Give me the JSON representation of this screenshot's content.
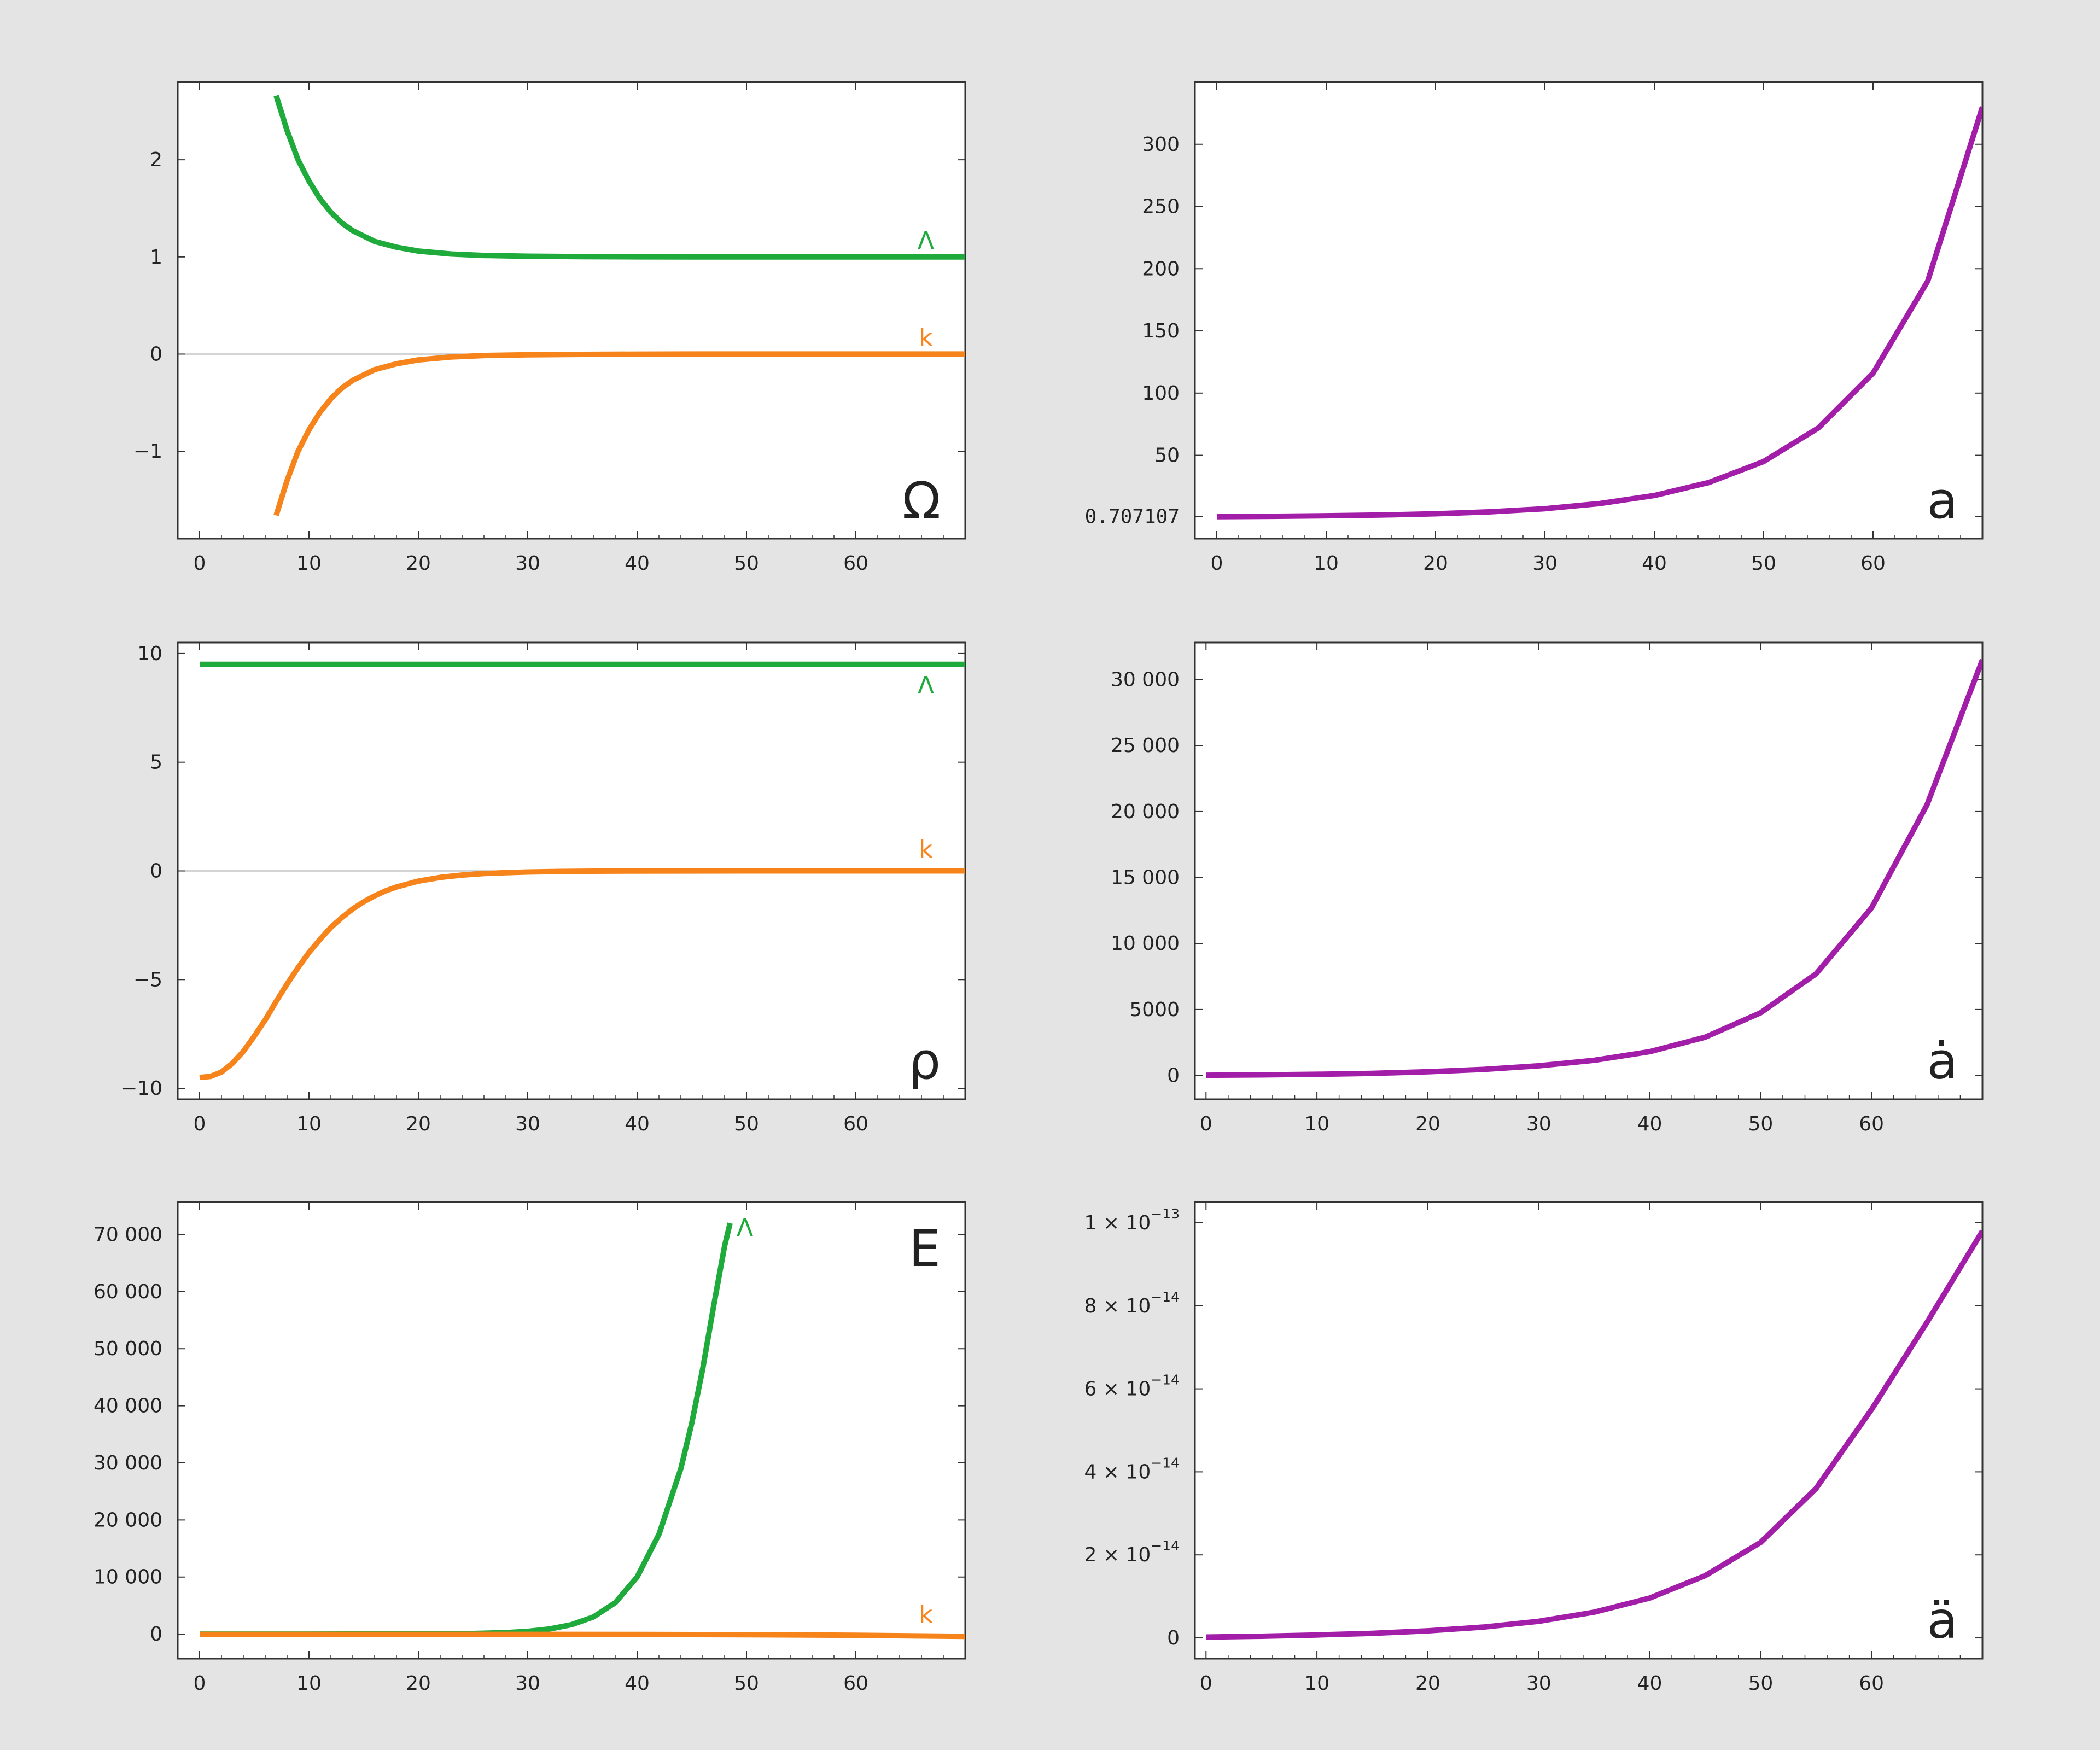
{
  "chart_data": [
    {
      "id": "omega",
      "type": "line",
      "panel_label": "Ω",
      "xlim": [
        -2,
        70
      ],
      "ylim": [
        -1.9,
        2.8
      ],
      "x_ticks": [
        0,
        10,
        20,
        30,
        40,
        50,
        60
      ],
      "y_ticks": [
        {
          "v": 2,
          "t": "2"
        },
        {
          "v": 1,
          "t": "1"
        },
        {
          "v": 0,
          "t": "0"
        },
        {
          "v": -1,
          "t": "−1"
        }
      ],
      "zero_line": true,
      "series": [
        {
          "name": "Λ",
          "color": "#1faa3c",
          "x": [
            7,
            8,
            9,
            10,
            11,
            12,
            13,
            14,
            16,
            18,
            20,
            23,
            26,
            30,
            35,
            40,
            45,
            50,
            55,
            60,
            65,
            70
          ],
          "y": [
            2.66,
            2.3,
            2.0,
            1.78,
            1.6,
            1.46,
            1.35,
            1.27,
            1.16,
            1.1,
            1.06,
            1.03,
            1.015,
            1.007,
            1.003,
            1.001,
            1.0,
            1.0,
            1.0,
            1.0,
            1.0,
            1.0
          ]
        },
        {
          "name": "k",
          "color": "#f7841b",
          "x": [
            7,
            8,
            9,
            10,
            11,
            12,
            13,
            14,
            16,
            18,
            20,
            23,
            26,
            30,
            35,
            40,
            45,
            50,
            55,
            60,
            65,
            70
          ],
          "y": [
            -1.66,
            -1.3,
            -1.0,
            -0.78,
            -0.6,
            -0.46,
            -0.35,
            -0.27,
            -0.16,
            -0.1,
            -0.06,
            -0.03,
            -0.015,
            -0.007,
            -0.003,
            -0.001,
            0.0,
            0.0,
            0.0,
            0.0,
            0.0,
            0.0
          ]
        }
      ]
    },
    {
      "id": "a",
      "type": "line",
      "panel_label": "a",
      "xlim": [
        -2,
        70
      ],
      "ylim": [
        -17,
        350
      ],
      "x_ticks": [
        0,
        10,
        20,
        30,
        40,
        50,
        60
      ],
      "y_ticks": [
        {
          "v": 0.707107,
          "t": "0.707107",
          "mono": true
        },
        {
          "v": 50,
          "t": "50"
        },
        {
          "v": 100,
          "t": "100"
        },
        {
          "v": 150,
          "t": "150"
        },
        {
          "v": 200,
          "t": "200"
        },
        {
          "v": 250,
          "t": "250"
        },
        {
          "v": 300,
          "t": "300"
        }
      ],
      "series": [
        {
          "name": "",
          "color": "#a31ea8",
          "x": [
            0,
            5,
            10,
            15,
            20,
            25,
            30,
            35,
            40,
            45,
            50,
            55,
            60,
            65,
            70
          ],
          "y": [
            0.707,
            0.98,
            1.4,
            2.0,
            3.0,
            4.6,
            7.1,
            11.2,
            17.7,
            28.2,
            45.0,
            72.0,
            116,
            190,
            330
          ]
        }
      ]
    },
    {
      "id": "rho",
      "type": "line",
      "panel_label": "ρ",
      "xlim": [
        -2,
        70
      ],
      "ylim": [
        -10.5,
        10.5
      ],
      "x_ticks": [
        0,
        10,
        20,
        30,
        40,
        50,
        60
      ],
      "y_ticks": [
        {
          "v": 10,
          "t": "10"
        },
        {
          "v": 5,
          "t": "5"
        },
        {
          "v": 0,
          "t": "0"
        },
        {
          "v": -5,
          "t": "−5"
        },
        {
          "v": -10,
          "t": "−10"
        }
      ],
      "zero_line": true,
      "series": [
        {
          "name": "Λ",
          "color": "#1faa3c",
          "x": [
            0,
            70
          ],
          "y": [
            9.5,
            9.5
          ]
        },
        {
          "name": "k",
          "color": "#f7841b",
          "x": [
            0,
            1,
            2,
            3,
            4,
            5,
            6,
            7,
            8,
            9,
            10,
            11,
            12,
            13,
            14,
            15,
            16,
            17,
            18,
            20,
            22,
            24,
            26,
            28,
            30,
            33,
            36,
            40,
            45,
            50,
            55,
            60,
            65,
            70
          ],
          "y": [
            -9.5,
            -9.45,
            -9.25,
            -8.85,
            -8.3,
            -7.6,
            -6.85,
            -6.0,
            -5.2,
            -4.45,
            -3.75,
            -3.15,
            -2.6,
            -2.15,
            -1.75,
            -1.42,
            -1.15,
            -0.92,
            -0.74,
            -0.47,
            -0.3,
            -0.19,
            -0.12,
            -0.08,
            -0.05,
            -0.025,
            -0.012,
            -0.005,
            -0.002,
            -0.001,
            0.0,
            0.0,
            0.0,
            0.0
          ]
        }
      ]
    },
    {
      "id": "adot",
      "type": "line",
      "panel_label": "ȧ",
      "xlim": [
        -1,
        70
      ],
      "ylim": [
        -1800,
        32800
      ],
      "x_ticks": [
        0,
        10,
        20,
        30,
        40,
        50,
        60
      ],
      "y_ticks": [
        {
          "v": 0,
          "t": "0"
        },
        {
          "v": 5000,
          "t": "5000"
        },
        {
          "v": 10000,
          "t": "10 000"
        },
        {
          "v": 15000,
          "t": "15 000"
        },
        {
          "v": 20000,
          "t": "20 000"
        },
        {
          "v": 25000,
          "t": "25 000"
        },
        {
          "v": 30000,
          "t": "30 000"
        }
      ],
      "series": [
        {
          "name": "",
          "color": "#a31ea8",
          "x": [
            0,
            5,
            10,
            15,
            20,
            25,
            30,
            35,
            40,
            45,
            50,
            55,
            60,
            65,
            70
          ],
          "y": [
            20,
            45,
            90,
            160,
            280,
            460,
            730,
            1150,
            1800,
            2900,
            4750,
            7700,
            12700,
            20500,
            31500
          ]
        }
      ]
    },
    {
      "id": "E",
      "type": "line",
      "panel_label": "E",
      "xlim": [
        -2,
        70
      ],
      "ylim": [
        -4300,
        75700
      ],
      "x_ticks": [
        0,
        10,
        20,
        30,
        40,
        50,
        60
      ],
      "y_ticks": [
        {
          "v": 0,
          "t": "0"
        },
        {
          "v": 10000,
          "t": "10 000"
        },
        {
          "v": 20000,
          "t": "20 000"
        },
        {
          "v": 30000,
          "t": "30 000"
        },
        {
          "v": 40000,
          "t": "40 000"
        },
        {
          "v": 50000,
          "t": "50 000"
        },
        {
          "v": 60000,
          "t": "60 000"
        },
        {
          "v": 70000,
          "t": "70 000"
        }
      ],
      "series": [
        {
          "name": "Λ",
          "color": "#1faa3c",
          "x": [
            0,
            10,
            20,
            25,
            28,
            30,
            32,
            34,
            36,
            38,
            40,
            42,
            44,
            45,
            46,
            47,
            48,
            48.5
          ],
          "y": [
            0,
            2,
            30,
            110,
            260,
            480,
            900,
            1650,
            3000,
            5500,
            10000,
            17500,
            29000,
            37000,
            46500,
            57500,
            68000,
            72000
          ]
        },
        {
          "name": "k",
          "color": "#f7841b",
          "x": [
            0,
            20,
            40,
            50,
            60,
            70
          ],
          "y": [
            -50,
            -50,
            -60,
            -100,
            -200,
            -400
          ]
        }
      ]
    },
    {
      "id": "addot",
      "type": "line",
      "panel_label": "ä",
      "xlim": [
        -1,
        70
      ],
      "ylim": [
        -5e-15,
        1.05e-13
      ],
      "x_ticks": [
        0,
        10,
        20,
        30,
        40,
        50,
        60
      ],
      "y_ticks": [
        {
          "v": 0,
          "t": "0"
        },
        {
          "v": 2e-14,
          "t": "2 × 10",
          "exp": "−14"
        },
        {
          "v": 4e-14,
          "t": "4 × 10",
          "exp": "−14"
        },
        {
          "v": 6e-14,
          "t": "6 × 10",
          "exp": "−14"
        },
        {
          "v": 8e-14,
          "t": "8 × 10",
          "exp": "−14"
        },
        {
          "v": 1e-13,
          "t": "1 × 10",
          "exp": "−13"
        }
      ],
      "series": [
        {
          "name": "",
          "color": "#a31ea8",
          "x": [
            0,
            5,
            10,
            15,
            20,
            25,
            30,
            35,
            40,
            45,
            50,
            55,
            60,
            65,
            70
          ],
          "y": [
            2e-16,
            4e-16,
            7e-16,
            1.1e-15,
            1.7e-15,
            2.6e-15,
            4e-15,
            6.2e-15,
            9.6e-15,
            1.5e-14,
            2.3e-14,
            3.6e-14,
            5.5e-14,
            7.6e-14,
            9.8e-14
          ]
        }
      ]
    }
  ]
}
